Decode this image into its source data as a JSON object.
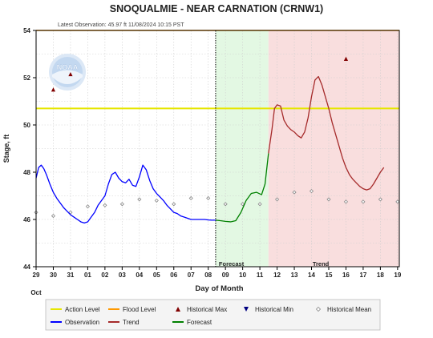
{
  "chart_data": {
    "type": "line",
    "title": "SNOQUALMIE - NEAR CARNATION  (CRNW1)",
    "subtitle": "Latest Observation: 45.97 ft 11/08/2024 10:15 PST",
    "xlabel": "Day of Month",
    "ylabel": "Stage, ft",
    "month_label": "Oct",
    "ylim": [
      44,
      54
    ],
    "yticks": [
      44,
      46,
      48,
      50,
      52,
      54
    ],
    "xlim": [
      0,
      21.1
    ],
    "x_tick_labels": [
      "29",
      "30",
      "31",
      "01",
      "02",
      "03",
      "04",
      "05",
      "06",
      "07",
      "08",
      "09",
      "10",
      "11",
      "12",
      "13",
      "14",
      "15",
      "16",
      "17",
      "18",
      "19"
    ],
    "region_labels": {
      "forecast": "Forecast",
      "trend": "Trend"
    },
    "regions": {
      "now": 10.43,
      "forecast_start": 10.43,
      "forecast_end": 13.5,
      "trend_end": 21.1
    },
    "action_level": 50.7,
    "flood_level": 54,
    "series": [
      {
        "name": "Observation",
        "color": "#0000ff",
        "x": [
          0,
          0.15,
          0.3,
          0.45,
          0.6,
          0.8,
          1.0,
          1.2,
          1.4,
          1.6,
          1.8,
          2.0,
          2.2,
          2.4,
          2.6,
          2.8,
          3.0,
          3.2,
          3.4,
          3.6,
          3.8,
          4.0,
          4.2,
          4.4,
          4.6,
          4.8,
          5.0,
          5.2,
          5.4,
          5.6,
          5.8,
          6.0,
          6.2,
          6.4,
          6.6,
          6.8,
          7.0,
          7.2,
          7.4,
          7.6,
          7.8,
          8.0,
          8.2,
          8.4,
          8.6,
          8.8,
          9.0,
          9.2,
          9.4,
          9.6,
          9.8,
          10.0,
          10.2,
          10.43
        ],
        "y": [
          47.75,
          48.2,
          48.3,
          48.15,
          47.9,
          47.5,
          47.15,
          46.9,
          46.7,
          46.5,
          46.35,
          46.2,
          46.1,
          46.0,
          45.9,
          45.85,
          45.9,
          46.1,
          46.3,
          46.6,
          46.8,
          47.0,
          47.5,
          47.9,
          48.0,
          47.75,
          47.6,
          47.55,
          47.7,
          47.45,
          47.4,
          47.8,
          48.3,
          48.1,
          47.65,
          47.3,
          47.1,
          46.95,
          46.8,
          46.6,
          46.45,
          46.3,
          46.25,
          46.15,
          46.1,
          46.05,
          46.0,
          46.0,
          46.0,
          46.0,
          46.0,
          45.98,
          45.97,
          45.97
        ]
      },
      {
        "name": "Forecast",
        "color": "#008000",
        "x": [
          10.43,
          10.7,
          11.0,
          11.3,
          11.6,
          11.9,
          12.2,
          12.5,
          12.8,
          13.1,
          13.3,
          13.5
        ],
        "y": [
          45.97,
          45.95,
          45.92,
          45.9,
          45.95,
          46.3,
          46.8,
          47.1,
          47.15,
          47.05,
          47.5,
          48.8
        ]
      },
      {
        "name": "Trend",
        "color": "#a52a2a",
        "x": [
          13.5,
          13.7,
          13.85,
          14.0,
          14.2,
          14.4,
          14.6,
          14.8,
          15.0,
          15.2,
          15.4,
          15.6,
          15.8,
          16.0,
          16.2,
          16.4,
          16.6,
          16.8,
          17.0,
          17.2,
          17.4,
          17.6,
          17.8,
          18.0,
          18.2,
          18.4,
          18.6,
          18.8,
          19.0,
          19.2,
          19.4,
          19.6,
          19.8,
          20.0,
          20.2
        ],
        "y": [
          48.8,
          49.8,
          50.7,
          50.85,
          50.8,
          50.2,
          49.95,
          49.8,
          49.7,
          49.55,
          49.45,
          49.7,
          50.3,
          51.2,
          51.9,
          52.05,
          51.7,
          51.2,
          50.7,
          50.1,
          49.6,
          49.1,
          48.6,
          48.2,
          47.9,
          47.7,
          47.55,
          47.4,
          47.3,
          47.25,
          47.3,
          47.5,
          47.75,
          48.0,
          48.2
        ]
      }
    ],
    "historical_max": {
      "x": [
        1.0,
        2.0,
        18.0
      ],
      "y": [
        51.5,
        52.15,
        52.8
      ]
    },
    "historical_mean": {
      "x": [
        0,
        1,
        2,
        3,
        4,
        5,
        6,
        7,
        8,
        9,
        10,
        11,
        12,
        13,
        14,
        15,
        16,
        17,
        18,
        19,
        20,
        21
      ],
      "y": [
        46.3,
        46.15,
        46.3,
        46.55,
        46.6,
        46.65,
        46.85,
        46.8,
        46.65,
        46.9,
        46.9,
        46.65,
        46.65,
        46.65,
        46.85,
        47.15,
        47.2,
        46.85,
        46.75,
        46.75,
        46.85,
        46.75
      ]
    },
    "legend": {
      "placement": "bottom",
      "items": [
        {
          "label": "Action Level",
          "symbol": "line",
          "color": "#e6e600"
        },
        {
          "label": "Flood Level",
          "symbol": "line",
          "color": "#ff9900"
        },
        {
          "label": "Historical Max",
          "symbol": "triangle-up",
          "color": "#800000"
        },
        {
          "label": "Historical Min",
          "symbol": "triangle-down",
          "color": "#000080"
        },
        {
          "label": "Historical Mean",
          "symbol": "diamond",
          "color": "#888888"
        },
        {
          "label": "Observation",
          "symbol": "line",
          "color": "#0000ff"
        },
        {
          "label": "Trend",
          "symbol": "line",
          "color": "#a52a2a"
        },
        {
          "label": "Forecast",
          "symbol": "line",
          "color": "#008000"
        }
      ]
    },
    "grid": true,
    "logo_text": "NOAA"
  }
}
